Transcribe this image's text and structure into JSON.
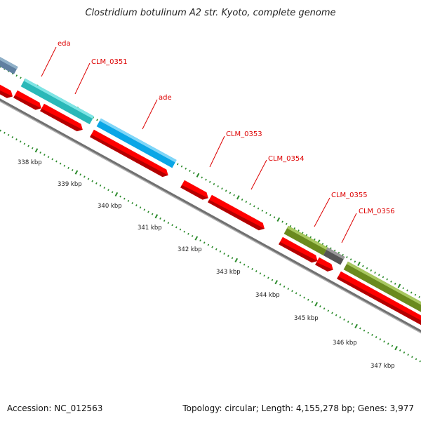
{
  "title": "Clostridium botulinum A2 str. Kyoto, complete genome",
  "footer": {
    "accession": "Accession: NC_012563",
    "summary": "Topology: circular; Length: 4,155,278 bp; Genes: 3,977"
  },
  "colors": {
    "cds": "#ff0000",
    "cds_dark": "#b30000",
    "teal": "#33cccc",
    "sky": "#1ab2ee",
    "olive": "#7a9a2a",
    "gray": "#707070",
    "backbone": "#8a8a8a",
    "tick": "#2a8a2a",
    "label": "#dd0000"
  },
  "gene_labels": [
    {
      "text": "eda"
    },
    {
      "text": "CLM_0351"
    },
    {
      "text": "ade"
    },
    {
      "text": "CLM_0353"
    },
    {
      "text": "CLM_0354"
    },
    {
      "text": "CLM_0355"
    },
    {
      "text": "CLM_0356"
    }
  ],
  "ruler_labels": [
    {
      "text": "338 kbp"
    },
    {
      "text": "339 kbp"
    },
    {
      "text": "340 kbp"
    },
    {
      "text": "341 kbp"
    },
    {
      "text": "342 kbp"
    },
    {
      "text": "343 kbp"
    },
    {
      "text": "344 kbp"
    },
    {
      "text": "345 kbp"
    },
    {
      "text": "346 kbp"
    },
    {
      "text": "347 kbp"
    }
  ]
}
